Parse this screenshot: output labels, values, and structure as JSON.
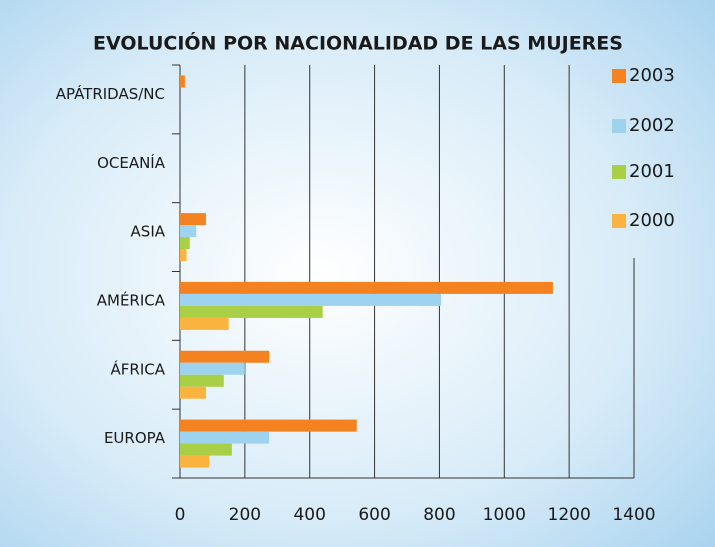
{
  "chart_data": {
    "type": "bar",
    "orientation": "horizontal",
    "title": "EVOLUCIÓN POR NACIONALIDAD DE LAS MUJERES",
    "categories": [
      "APÁTRIDAS/NC",
      "OCEANÍA",
      "ASIA",
      "AMÉRICA",
      "ÁFRICA",
      "EUROPA"
    ],
    "series": [
      {
        "name": "2003",
        "color": "#f58220",
        "values": [
          15,
          0,
          80,
          1150,
          275,
          545
        ]
      },
      {
        "name": "2002",
        "color": "#9dd3ef",
        "values": [
          0,
          0,
          50,
          805,
          200,
          275
        ]
      },
      {
        "name": "2001",
        "color": "#a8cf45",
        "values": [
          0,
          0,
          30,
          440,
          135,
          160
        ]
      },
      {
        "name": "2000",
        "color": "#fbb33f",
        "values": [
          0,
          0,
          20,
          150,
          80,
          90
        ]
      }
    ],
    "xlim": [
      0,
      1400
    ],
    "xticks": [
      0,
      200,
      400,
      600,
      800,
      1000,
      1200,
      1400
    ],
    "grid": true,
    "legend": "right"
  }
}
